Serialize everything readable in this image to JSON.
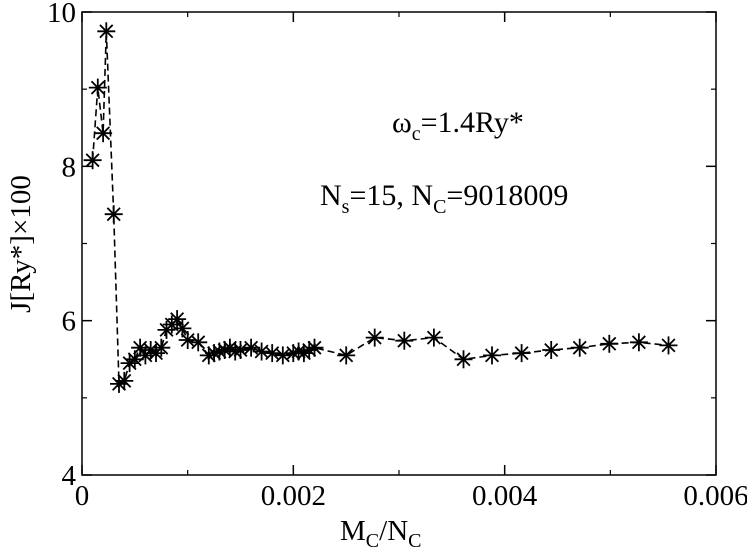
{
  "chart_data": {
    "type": "scatter",
    "xlabel": {
      "main": "M",
      "sub1": "C",
      "mid": "/N",
      "sub2": "C"
    },
    "ylabel": "J[Ry*]×100",
    "xlim": [
      0,
      0.006
    ],
    "ylim": [
      4,
      10
    ],
    "xticks": [
      0,
      0.002,
      0.004,
      0.006
    ],
    "xtick_labels": [
      "0",
      "0.002",
      "0.004",
      "0.006"
    ],
    "yticks": [
      4,
      6,
      8,
      10
    ],
    "ytick_labels": [
      "4",
      "6",
      "8",
      "10"
    ],
    "grid": false,
    "line_style": "dashed",
    "marker": "asterisk",
    "annotations": [
      {
        "id": "omega",
        "parts": [
          "ω",
          "c",
          "=1.4Ry*"
        ]
      },
      {
        "id": "ns",
        "parts": [
          "N",
          "s",
          "=15, N",
          "C",
          "=9018009"
        ]
      }
    ],
    "series": [
      {
        "x": [
          0.0001,
          0.00015,
          0.0002,
          0.00023,
          0.0003,
          0.00035,
          0.0004,
          0.00045,
          0.0005,
          0.00055,
          0.0006,
          0.00065,
          0.0007,
          0.00075,
          0.0008,
          0.00085,
          0.0009,
          0.00095,
          0.001,
          0.0011,
          0.0012,
          0.00125,
          0.0013,
          0.00135,
          0.0014,
          0.00145,
          0.0015,
          0.0016,
          0.0017,
          0.0018,
          0.0019,
          0.002,
          0.00205,
          0.0021,
          0.00215,
          0.0022,
          0.0025,
          0.00277,
          0.00305,
          0.00333,
          0.00361,
          0.00388,
          0.00416,
          0.00444,
          0.00471,
          0.00499,
          0.00527,
          0.00555
        ],
        "y": [
          8.08,
          9.02,
          8.43,
          9.75,
          7.38,
          5.18,
          5.22,
          5.45,
          5.5,
          5.65,
          5.55,
          5.62,
          5.58,
          5.65,
          5.88,
          5.95,
          6.02,
          5.9,
          5.75,
          5.72,
          5.55,
          5.58,
          5.6,
          5.62,
          5.65,
          5.6,
          5.62,
          5.65,
          5.6,
          5.58,
          5.55,
          5.58,
          5.6,
          5.58,
          5.62,
          5.65,
          5.55,
          5.78,
          5.74,
          5.78,
          5.5,
          5.55,
          5.58,
          5.62,
          5.65,
          5.7,
          5.72,
          5.68
        ]
      }
    ]
  }
}
